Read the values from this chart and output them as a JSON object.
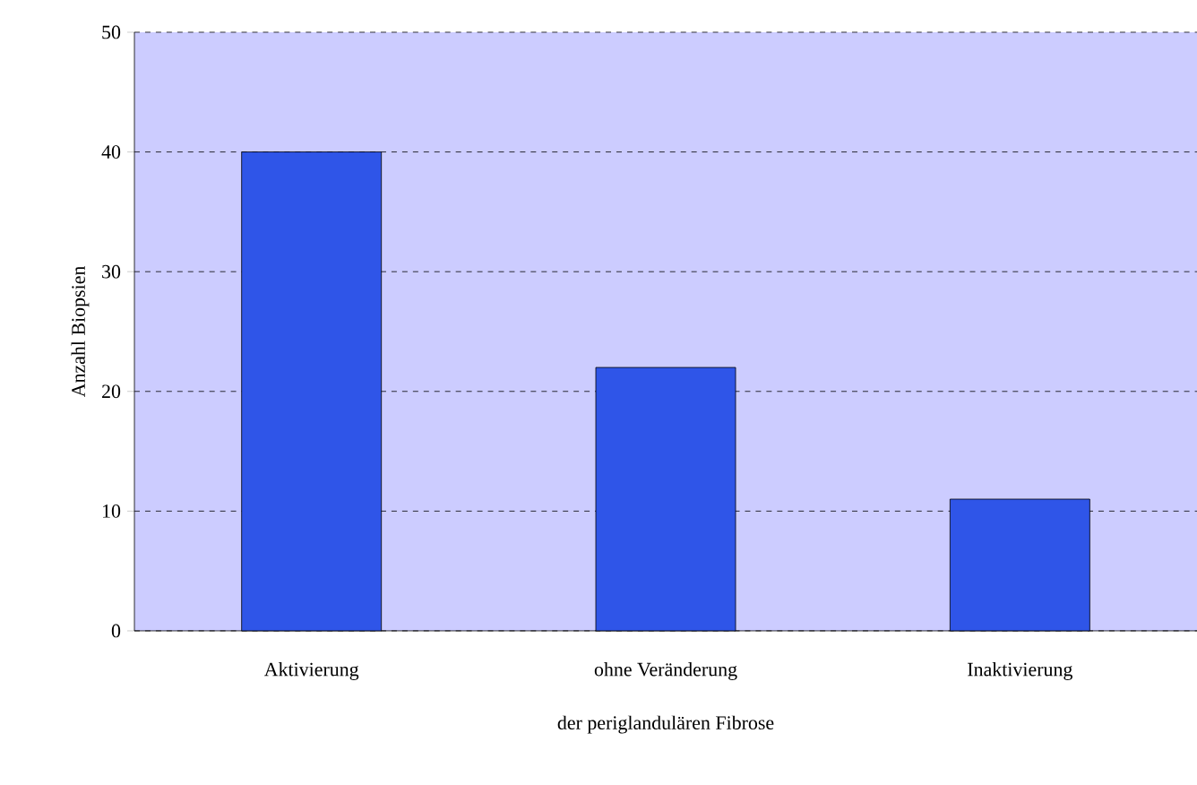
{
  "chart_data": {
    "type": "bar",
    "xlabel": "der periglandulären Fibrose",
    "ylabel": "Anzahl Biopsien",
    "categories": [
      "Aktivierung",
      "ohne Veränderung",
      "Inaktivierung"
    ],
    "values": [
      40,
      22,
      11
    ],
    "color": "#2f55e8",
    "ylim": [
      0,
      50
    ],
    "yticks": [
      0,
      10,
      20,
      30,
      40,
      50
    ],
    "grid": "y"
  }
}
